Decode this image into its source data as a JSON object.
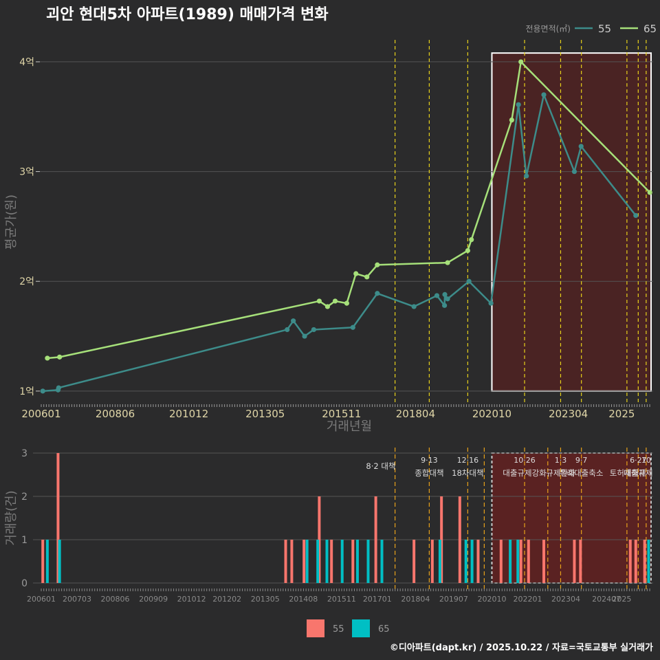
{
  "title": "괴안 현대5차 아파트(1989) 매매가격 변화",
  "credit": "©디아파트(dapt.kr) / 2025.10.22 / 자료=국토교통부 실거래가",
  "colors": {
    "background": "#2b2b2c",
    "grid": "#555555",
    "line55": "#3d8c8a",
    "line65": "#a6e07a",
    "bar55": "#f8766d",
    "bar65": "#00bfc4",
    "policy": "#e8d21a",
    "highlight_fill": "#4a2323",
    "text": "#e0d6a8",
    "axis_title": "#7a7a7a"
  },
  "chart_data": [
    {
      "type": "line",
      "title": "괴안 현대5차 아파트(1989) 매매가격 변화",
      "xlabel": "거래년월",
      "ylabel": "평균가(원)",
      "ylim": [
        0.88,
        4.2
      ],
      "yticks": [
        {
          "v": 1,
          "label": "1억"
        },
        {
          "v": 2,
          "label": "2억"
        },
        {
          "v": 3,
          "label": "3억"
        },
        {
          "v": 4,
          "label": "4억"
        }
      ],
      "xticks": [
        {
          "t": 2006.0,
          "label": "200601"
        },
        {
          "t": 2008.42,
          "label": "200806"
        },
        {
          "t": 2010.83,
          "label": "201012"
        },
        {
          "t": 2013.33,
          "label": "201305"
        },
        {
          "t": 2015.83,
          "label": "201511"
        },
        {
          "t": 2018.25,
          "label": "201804"
        },
        {
          "t": 2020.75,
          "label": "202010"
        },
        {
          "t": 2023.25,
          "label": "202304"
        },
        {
          "t": 2025.0,
          "label": "2025"
        }
      ],
      "legend": {
        "title": "전용면적(㎡)",
        "entries": [
          "55",
          "65"
        ],
        "position": "top-right"
      },
      "highlight": {
        "from": 2020.75,
        "to": 2025.96,
        "ymin": 1.0,
        "ymax": 4.08
      },
      "policy_lines": [
        2017.58,
        2018.7,
        2019.96,
        2021.82,
        2023.0,
        2023.68,
        2025.17,
        2025.54,
        2025.8
      ],
      "series": [
        {
          "name": "55",
          "points": [
            [
              2006.05,
              1.0
            ],
            [
              2006.55,
              1.01
            ],
            [
              2006.57,
              1.03
            ],
            [
              2014.05,
              1.56
            ],
            [
              2014.25,
              1.64
            ],
            [
              2014.62,
              1.5
            ],
            [
              2014.92,
              1.56
            ],
            [
              2016.2,
              1.58
            ],
            [
              2017.0,
              1.89
            ],
            [
              2018.2,
              1.77
            ],
            [
              2018.95,
              1.87
            ],
            [
              2019.2,
              1.78
            ],
            [
              2019.21,
              1.88
            ],
            [
              2019.3,
              1.84
            ],
            [
              2020.0,
              2.0
            ],
            [
              2020.72,
              1.8
            ],
            [
              2021.62,
              3.61
            ],
            [
              2021.88,
              2.96
            ],
            [
              2022.45,
              3.7
            ],
            [
              2023.45,
              3.0
            ],
            [
              2023.67,
              3.23
            ],
            [
              2025.46,
              2.6
            ]
          ]
        },
        {
          "name": "65",
          "points": [
            [
              2006.2,
              1.3
            ],
            [
              2006.6,
              1.31
            ],
            [
              2015.1,
              1.82
            ],
            [
              2015.37,
              1.77
            ],
            [
              2015.62,
              1.82
            ],
            [
              2016.0,
              1.8
            ],
            [
              2016.3,
              2.07
            ],
            [
              2016.66,
              2.04
            ],
            [
              2017.0,
              2.15
            ],
            [
              2019.3,
              2.17
            ],
            [
              2019.96,
              2.28
            ],
            [
              2020.08,
              2.38
            ],
            [
              2021.4,
              3.47
            ],
            [
              2021.7,
              4.0
            ],
            [
              2025.92,
              2.81
            ]
          ]
        }
      ]
    },
    {
      "type": "bar",
      "xlabel": "",
      "ylabel": "거래량(건)",
      "ylim": [
        0,
        3
      ],
      "yticks": [
        0,
        1,
        2,
        3
      ],
      "xticks": [
        {
          "t": 2006.0,
          "label": "200601"
        },
        {
          "t": 2007.17,
          "label": "200703"
        },
        {
          "t": 2008.42,
          "label": "200806"
        },
        {
          "t": 2009.67,
          "label": "200909"
        },
        {
          "t": 2010.92,
          "label": "201012"
        },
        {
          "t": 2012.08,
          "label": "201202"
        },
        {
          "t": 2013.33,
          "label": "201305"
        },
        {
          "t": 2014.58,
          "label": "201408"
        },
        {
          "t": 2015.83,
          "label": "201511"
        },
        {
          "t": 2017.0,
          "label": "201701"
        },
        {
          "t": 2018.25,
          "label": "201804"
        },
        {
          "t": 2019.5,
          "label": "201907"
        },
        {
          "t": 2020.75,
          "label": "202010"
        },
        {
          "t": 2021.92,
          "label": "202201"
        },
        {
          "t": 2023.17,
          "label": "202304"
        },
        {
          "t": 2024.5,
          "label": "202407"
        },
        {
          "t": 2025.0,
          "label": "2025"
        }
      ],
      "legend": {
        "entries": [
          "55",
          "65"
        ],
        "position": "bottom"
      },
      "highlight": {
        "from": 2020.75,
        "to": 2025.96
      },
      "policy_lines": [
        2017.58,
        2018.7,
        2019.96,
        2020.5,
        2021.82,
        2022.58,
        2023.0,
        2023.68,
        2025.17,
        2025.54,
        2025.8
      ],
      "annotations": [
        {
          "t": 2017.6,
          "line1": "",
          "line2": "8·2 대책"
        },
        {
          "t": 2018.7,
          "line1": "9·13",
          "line2": "종합대책"
        },
        {
          "t": 2019.96,
          "line1": "12·16",
          "line2": "18차대책"
        },
        {
          "t": 2021.82,
          "line1": "10·26",
          "line2": "대출규제강화"
        },
        {
          "t": 2023.0,
          "line1": "1·3",
          "line2": "규제완화"
        },
        {
          "t": 2023.68,
          "line1": "9·7",
          "line2": "특례대출축소"
        },
        {
          "t": 2025.2,
          "line1": "",
          "line2": "토허제해제"
        },
        {
          "t": 2025.54,
          "line1": "6·27",
          "line2": "대출규제"
        },
        {
          "t": 2025.8,
          "line1": "10",
          "line2": ""
        }
      ],
      "series": [
        {
          "name": "55",
          "bars": [
            [
              2006.05,
              1
            ],
            [
              2006.55,
              3
            ],
            [
              2014.0,
              1
            ],
            [
              2014.2,
              1
            ],
            [
              2014.6,
              1
            ],
            [
              2015.1,
              2
            ],
            [
              2015.5,
              1
            ],
            [
              2016.2,
              1
            ],
            [
              2016.95,
              2
            ],
            [
              2018.2,
              1
            ],
            [
              2018.8,
              1
            ],
            [
              2019.1,
              2
            ],
            [
              2019.7,
              2
            ],
            [
              2020.3,
              1
            ],
            [
              2021.05,
              1
            ],
            [
              2021.7,
              1
            ],
            [
              2021.95,
              1
            ],
            [
              2022.45,
              1
            ],
            [
              2023.45,
              1
            ],
            [
              2023.65,
              1
            ],
            [
              2025.28,
              1
            ],
            [
              2025.46,
              1
            ],
            [
              2025.75,
              1
            ]
          ]
        },
        {
          "name": "65",
          "bars": [
            [
              2006.2,
              1
            ],
            [
              2006.6,
              1
            ],
            [
              2014.7,
              1
            ],
            [
              2015.05,
              1
            ],
            [
              2015.35,
              1
            ],
            [
              2015.85,
              1
            ],
            [
              2016.35,
              1
            ],
            [
              2016.7,
              1
            ],
            [
              2017.15,
              1
            ],
            [
              2019.05,
              1
            ],
            [
              2019.9,
              1
            ],
            [
              2020.1,
              1
            ],
            [
              2021.35,
              1
            ],
            [
              2021.6,
              1
            ],
            [
              2025.88,
              1
            ]
          ]
        }
      ]
    }
  ]
}
